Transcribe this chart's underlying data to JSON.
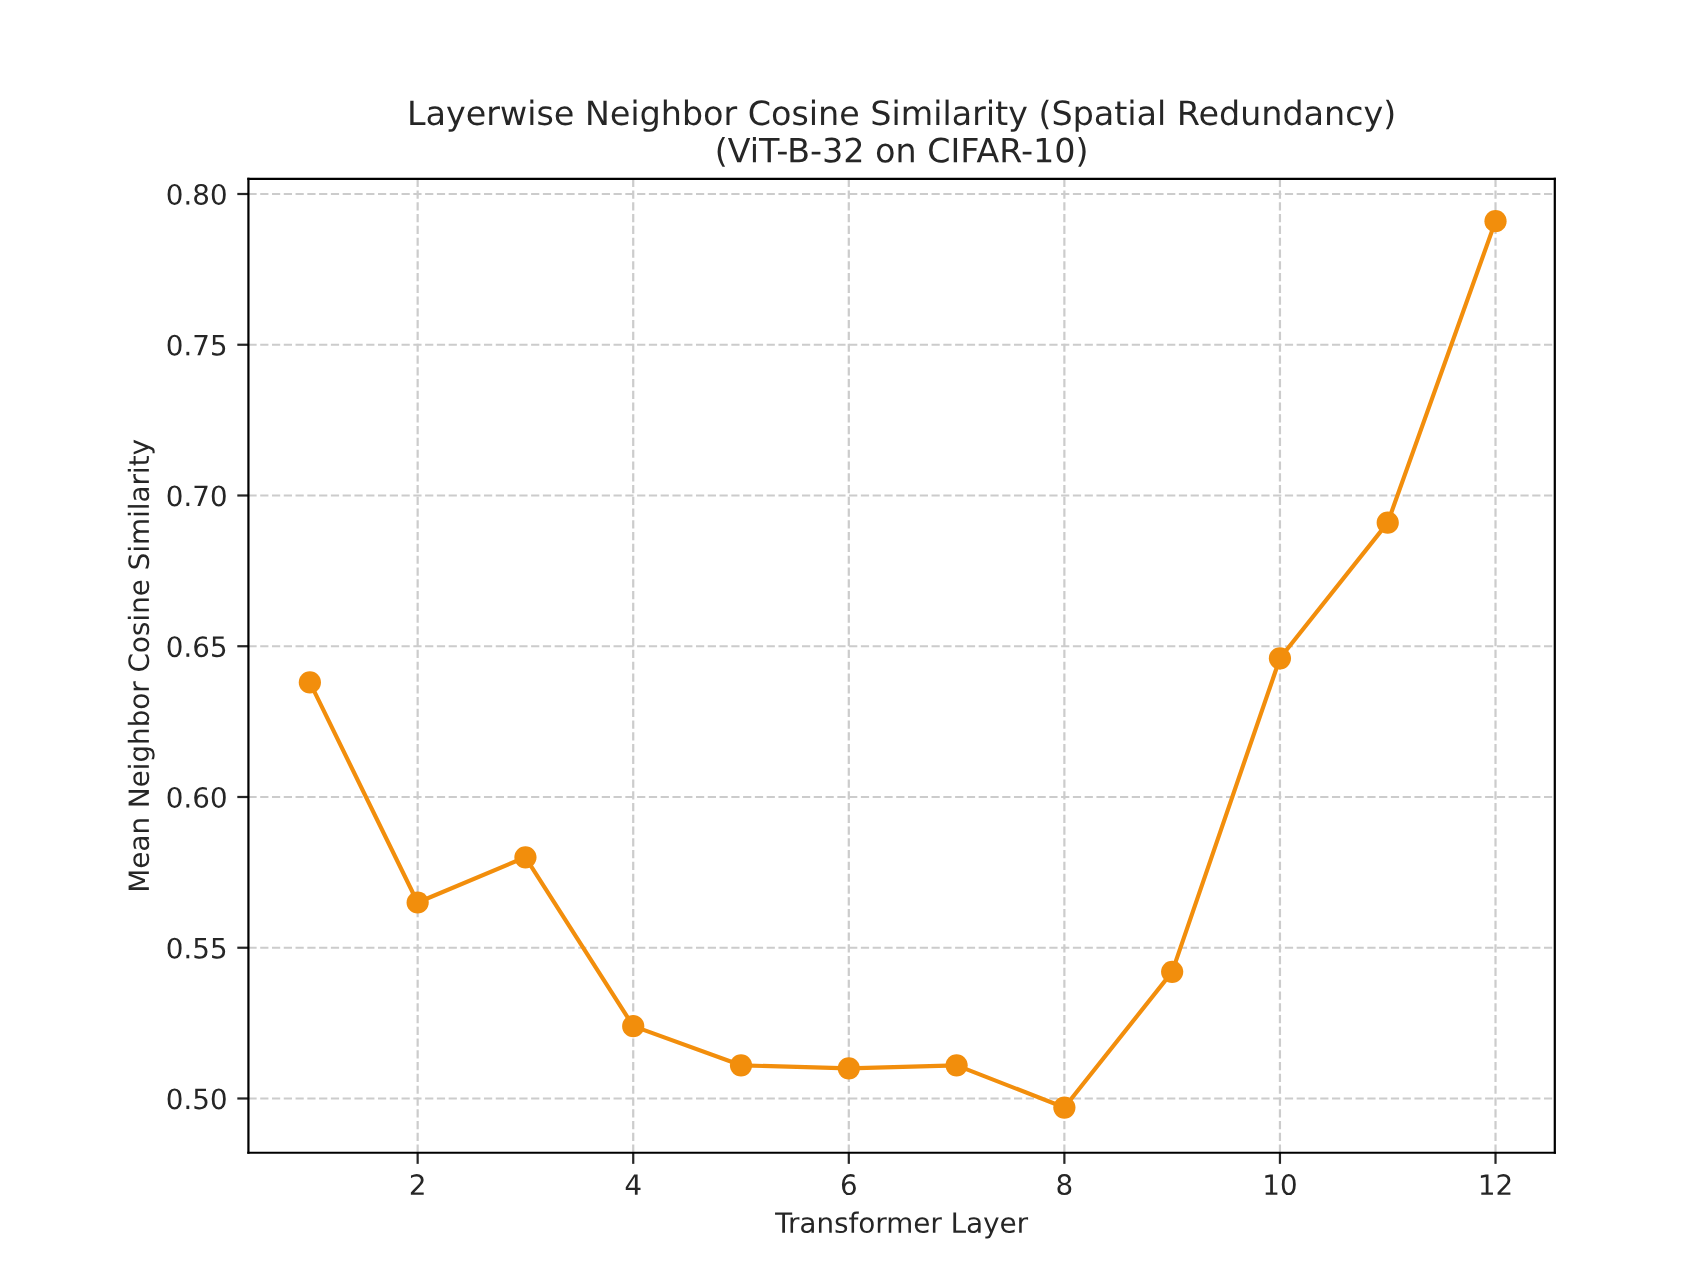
{
  "chart_data": {
    "type": "line",
    "title": "Layerwise Neighbor Cosine Similarity (Spatial Redundancy)\n(ViT-B-32 on CIFAR-10)",
    "xlabel": "Transformer Layer",
    "ylabel": "Mean Neighbor Cosine Similarity",
    "x": [
      1,
      2,
      3,
      4,
      5,
      6,
      7,
      8,
      9,
      10,
      11,
      12
    ],
    "series": [
      {
        "color": "#f28e0c",
        "values": [
          0.638,
          0.565,
          0.58,
          0.524,
          0.511,
          0.51,
          0.511,
          0.497,
          0.542,
          0.646,
          0.691,
          0.791
        ]
      }
    ],
    "xlim": [
      0.43,
      12.55
    ],
    "xticks": [
      2,
      4,
      6,
      8,
      10,
      12
    ],
    "ylim": [
      0.482,
      0.805
    ],
    "yticks": [
      {
        "value": 0.5,
        "label": "0.50"
      },
      0.55,
      {
        "value": 0.6,
        "label": "0.60"
      },
      0.65,
      {
        "value": 0.7,
        "label": "0.70"
      },
      0.75,
      {
        "value": 0.8,
        "label": "0.80"
      }
    ],
    "grid": true,
    "marker": "circle",
    "line_style": "solid"
  }
}
